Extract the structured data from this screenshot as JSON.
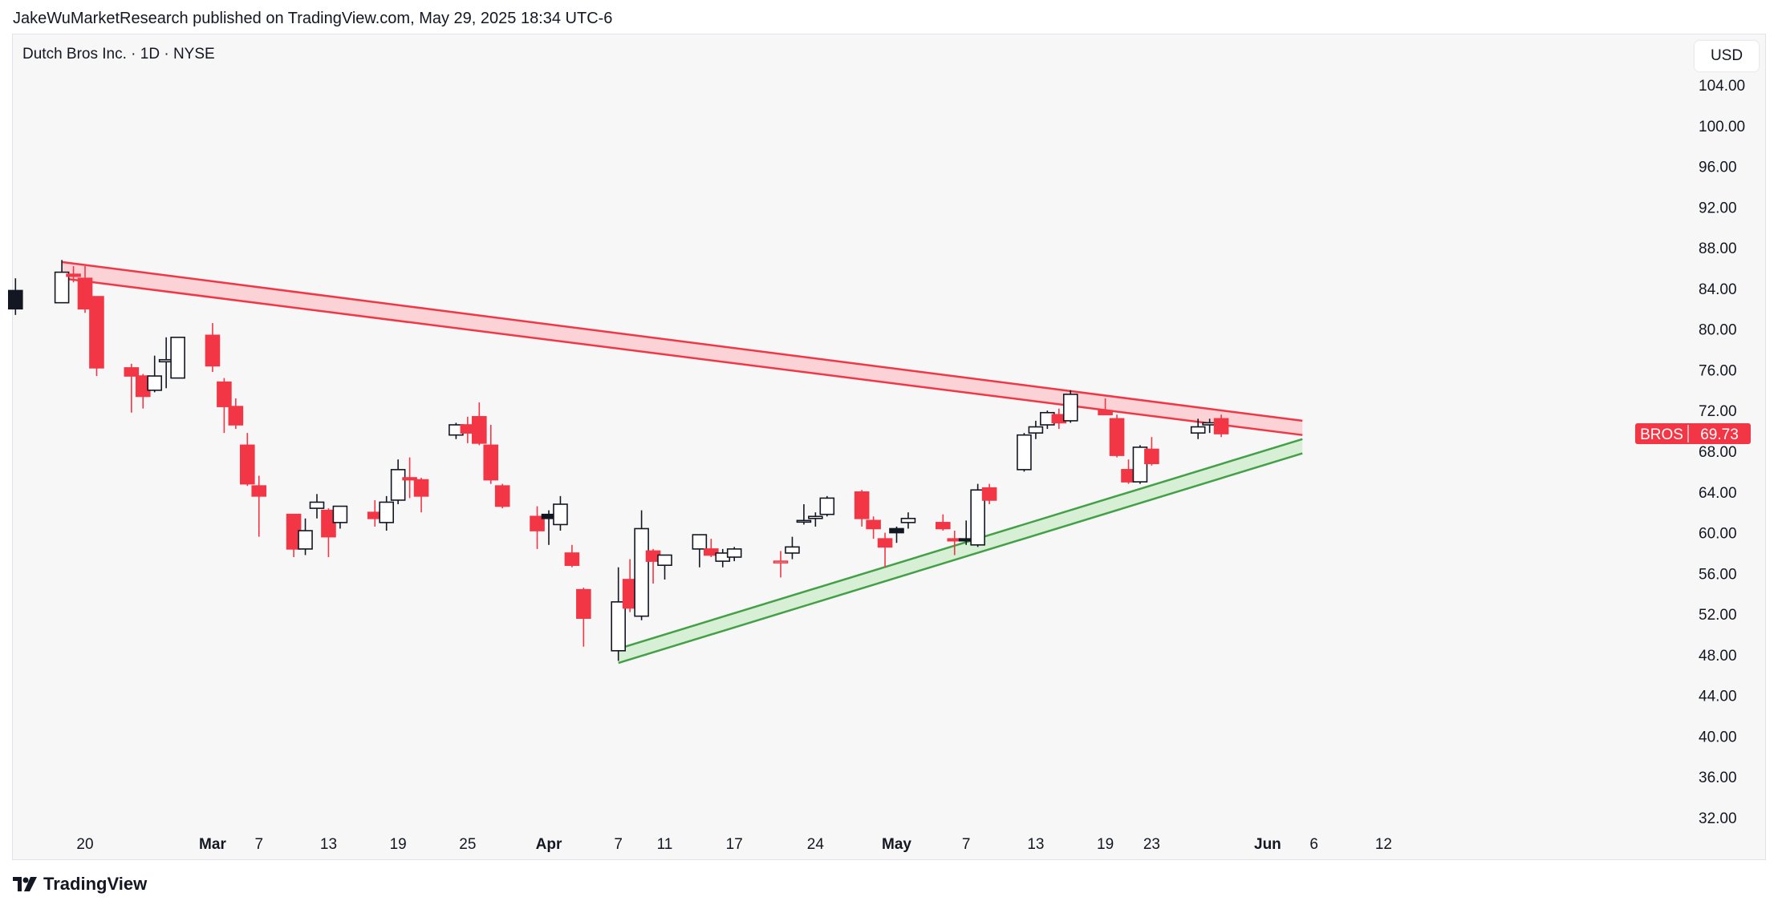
{
  "publisher": "JakeWuMarketResearch published on TradingView.com, May 29, 2025 18:34 UTC-6",
  "symbol_title": "Dutch Bros Inc. · 1D · NYSE",
  "currency": "USD",
  "brand": "TradingView",
  "colors": {
    "up": "#131722",
    "down": "#f23645",
    "resistance": "#f23645",
    "support": "#43a047",
    "resistance_fill": "#fbd3d6",
    "support_fill": "#d7efd4"
  },
  "chart_data": {
    "type": "candlestick",
    "symbol": "BROS",
    "last_price": "69.73",
    "ylim": [
      32,
      104
    ],
    "yticks": [
      "104.00",
      "100.00",
      "96.00",
      "92.00",
      "88.00",
      "84.00",
      "80.00",
      "76.00",
      "72.00",
      "68.00",
      "64.00",
      "60.00",
      "56.00",
      "52.00",
      "48.00",
      "44.00",
      "40.00",
      "36.00",
      "32.00"
    ],
    "xticks": [
      {
        "label": "20",
        "date": "2025-02-20",
        "bold": false
      },
      {
        "label": "Mar",
        "date": "2025-03-03",
        "bold": true
      },
      {
        "label": "7",
        "date": "2025-03-07",
        "bold": false
      },
      {
        "label": "13",
        "date": "2025-03-13",
        "bold": false
      },
      {
        "label": "19",
        "date": "2025-03-19",
        "bold": false
      },
      {
        "label": "25",
        "date": "2025-03-25",
        "bold": false
      },
      {
        "label": "Apr",
        "date": "2025-04-01",
        "bold": true
      },
      {
        "label": "7",
        "date": "2025-04-07",
        "bold": false
      },
      {
        "label": "11",
        "date": "2025-04-11",
        "bold": false
      },
      {
        "label": "17",
        "date": "2025-04-17",
        "bold": false
      },
      {
        "label": "24",
        "date": "2025-04-24",
        "bold": false
      },
      {
        "label": "May",
        "date": "2025-05-01",
        "bold": true
      },
      {
        "label": "7",
        "date": "2025-05-07",
        "bold": false
      },
      {
        "label": "13",
        "date": "2025-05-13",
        "bold": false
      },
      {
        "label": "19",
        "date": "2025-05-19",
        "bold": false
      },
      {
        "label": "23",
        "date": "2025-05-23",
        "bold": false
      },
      {
        "label": "Jun",
        "date": "2025-06-02",
        "bold": true
      },
      {
        "label": "6",
        "date": "2025-06-06",
        "bold": false
      },
      {
        "label": "12",
        "date": "2025-06-12",
        "bold": false
      }
    ],
    "candles": [
      {
        "date": "2025-02-14",
        "o": 83.8,
        "h": 85.0,
        "l": 81.4,
        "c": 82.0
      },
      {
        "date": "2025-02-18",
        "o": 82.6,
        "h": 86.8,
        "l": 82.6,
        "c": 85.6
      },
      {
        "date": "2025-02-19",
        "o": 85.4,
        "h": 86.2,
        "l": 84.6,
        "c": 85.2
      },
      {
        "date": "2025-02-20",
        "o": 85.0,
        "h": 86.2,
        "l": 81.6,
        "c": 82.0
      },
      {
        "date": "2025-02-21",
        "o": 83.2,
        "h": 83.2,
        "l": 75.4,
        "c": 76.2
      },
      {
        "date": "2025-02-24",
        "o": 76.2,
        "h": 76.6,
        "l": 71.8,
        "c": 75.4
      },
      {
        "date": "2025-02-25",
        "o": 75.4,
        "h": 75.6,
        "l": 72.2,
        "c": 73.4
      },
      {
        "date": "2025-02-26",
        "o": 74.0,
        "h": 77.4,
        "l": 73.8,
        "c": 75.4
      },
      {
        "date": "2025-02-27",
        "o": 76.8,
        "h": 79.2,
        "l": 74.2,
        "c": 77.0
      },
      {
        "date": "2025-02-28",
        "o": 75.2,
        "h": 79.2,
        "l": 75.2,
        "c": 79.2
      },
      {
        "date": "2025-03-03",
        "o": 79.4,
        "h": 80.6,
        "l": 75.8,
        "c": 76.4
      },
      {
        "date": "2025-03-04",
        "o": 74.8,
        "h": 75.2,
        "l": 69.8,
        "c": 72.4
      },
      {
        "date": "2025-03-05",
        "o": 72.4,
        "h": 73.2,
        "l": 70.2,
        "c": 70.6
      },
      {
        "date": "2025-03-06",
        "o": 68.6,
        "h": 69.8,
        "l": 64.6,
        "c": 64.8
      },
      {
        "date": "2025-03-07",
        "o": 64.6,
        "h": 65.6,
        "l": 59.6,
        "c": 63.6
      },
      {
        "date": "2025-03-10",
        "o": 61.8,
        "h": 61.8,
        "l": 57.6,
        "c": 58.4
      },
      {
        "date": "2025-03-11",
        "o": 58.4,
        "h": 61.4,
        "l": 57.8,
        "c": 60.2
      },
      {
        "date": "2025-03-12",
        "o": 62.4,
        "h": 63.8,
        "l": 61.4,
        "c": 63.0
      },
      {
        "date": "2025-03-13",
        "o": 62.2,
        "h": 62.4,
        "l": 57.6,
        "c": 59.6
      },
      {
        "date": "2025-03-14",
        "o": 61.0,
        "h": 62.6,
        "l": 60.4,
        "c": 62.6
      },
      {
        "date": "2025-03-17",
        "o": 62.0,
        "h": 63.2,
        "l": 60.6,
        "c": 61.4
      },
      {
        "date": "2025-03-18",
        "o": 61.0,
        "h": 63.6,
        "l": 60.2,
        "c": 63.0
      },
      {
        "date": "2025-03-19",
        "o": 63.2,
        "h": 67.2,
        "l": 62.8,
        "c": 66.2
      },
      {
        "date": "2025-03-20",
        "o": 65.4,
        "h": 67.4,
        "l": 63.4,
        "c": 65.2
      },
      {
        "date": "2025-03-21",
        "o": 65.2,
        "h": 65.4,
        "l": 62.0,
        "c": 63.6
      },
      {
        "date": "2025-03-24",
        "o": 69.6,
        "h": 70.8,
        "l": 69.2,
        "c": 70.6
      },
      {
        "date": "2025-03-25",
        "o": 70.6,
        "h": 71.4,
        "l": 68.8,
        "c": 69.8
      },
      {
        "date": "2025-03-26",
        "o": 71.4,
        "h": 72.8,
        "l": 68.6,
        "c": 68.8
      },
      {
        "date": "2025-03-27",
        "o": 68.6,
        "h": 70.6,
        "l": 64.8,
        "c": 65.2
      },
      {
        "date": "2025-03-28",
        "o": 64.6,
        "h": 64.8,
        "l": 62.4,
        "c": 62.6
      },
      {
        "date": "2025-03-31",
        "o": 61.6,
        "h": 62.6,
        "l": 58.4,
        "c": 60.2
      },
      {
        "date": "2025-04-01",
        "o": 61.8,
        "h": 62.2,
        "l": 58.8,
        "c": 61.4
      },
      {
        "date": "2025-04-02",
        "o": 60.8,
        "h": 63.6,
        "l": 60.2,
        "c": 62.8
      },
      {
        "date": "2025-04-03",
        "o": 58.0,
        "h": 58.8,
        "l": 56.6,
        "c": 56.8
      },
      {
        "date": "2025-04-04",
        "o": 54.4,
        "h": 54.6,
        "l": 48.8,
        "c": 51.6
      },
      {
        "date": "2025-04-07",
        "o": 48.4,
        "h": 56.6,
        "l": 47.4,
        "c": 53.2
      },
      {
        "date": "2025-04-08",
        "o": 55.4,
        "h": 57.4,
        "l": 52.2,
        "c": 52.6
      },
      {
        "date": "2025-04-09",
        "o": 51.8,
        "h": 62.2,
        "l": 51.4,
        "c": 60.4
      },
      {
        "date": "2025-04-10",
        "o": 58.2,
        "h": 58.4,
        "l": 55.0,
        "c": 57.2
      },
      {
        "date": "2025-04-11",
        "o": 56.8,
        "h": 57.8,
        "l": 55.4,
        "c": 57.8
      },
      {
        "date": "2025-04-14",
        "o": 58.4,
        "h": 59.8,
        "l": 56.6,
        "c": 59.8
      },
      {
        "date": "2025-04-15",
        "o": 58.4,
        "h": 59.4,
        "l": 57.6,
        "c": 57.8
      },
      {
        "date": "2025-04-16",
        "o": 57.2,
        "h": 58.4,
        "l": 56.6,
        "c": 58.0
      },
      {
        "date": "2025-04-17",
        "o": 57.6,
        "h": 58.6,
        "l": 57.2,
        "c": 58.4
      },
      {
        "date": "2025-04-21",
        "o": 57.2,
        "h": 58.2,
        "l": 55.6,
        "c": 57.2
      },
      {
        "date": "2025-04-22",
        "o": 58.0,
        "h": 59.6,
        "l": 57.4,
        "c": 58.6
      },
      {
        "date": "2025-04-23",
        "o": 61.2,
        "h": 62.8,
        "l": 60.8,
        "c": 61.2
      },
      {
        "date": "2025-04-24",
        "o": 61.4,
        "h": 62.0,
        "l": 60.6,
        "c": 61.6
      },
      {
        "date": "2025-04-25",
        "o": 61.8,
        "h": 63.6,
        "l": 61.6,
        "c": 63.4
      },
      {
        "date": "2025-04-28",
        "o": 64.0,
        "h": 64.2,
        "l": 60.6,
        "c": 61.4
      },
      {
        "date": "2025-04-29",
        "o": 61.2,
        "h": 61.6,
        "l": 59.4,
        "c": 60.4
      },
      {
        "date": "2025-04-30",
        "o": 59.4,
        "h": 60.0,
        "l": 56.6,
        "c": 58.6
      },
      {
        "date": "2025-05-01",
        "o": 60.4,
        "h": 60.6,
        "l": 59.0,
        "c": 60.0
      },
      {
        "date": "2025-05-02",
        "o": 61.0,
        "h": 62.0,
        "l": 60.4,
        "c": 61.4
      },
      {
        "date": "2025-05-05",
        "o": 61.0,
        "h": 61.8,
        "l": 60.2,
        "c": 60.4
      },
      {
        "date": "2025-05-06",
        "o": 59.4,
        "h": 60.2,
        "l": 57.8,
        "c": 59.2
      },
      {
        "date": "2025-05-07",
        "o": 59.4,
        "h": 61.2,
        "l": 58.8,
        "c": 59.2
      },
      {
        "date": "2025-05-08",
        "o": 58.8,
        "h": 64.8,
        "l": 58.6,
        "c": 64.2
      },
      {
        "date": "2025-05-09",
        "o": 64.4,
        "h": 64.8,
        "l": 62.8,
        "c": 63.2
      },
      {
        "date": "2025-05-12",
        "o": 66.2,
        "h": 69.8,
        "l": 66.0,
        "c": 69.6
      },
      {
        "date": "2025-05-13",
        "o": 69.8,
        "h": 71.0,
        "l": 69.2,
        "c": 70.4
      },
      {
        "date": "2025-05-14",
        "o": 70.6,
        "h": 72.0,
        "l": 70.2,
        "c": 71.8
      },
      {
        "date": "2025-05-15",
        "o": 71.6,
        "h": 72.2,
        "l": 70.2,
        "c": 70.8
      },
      {
        "date": "2025-05-16",
        "o": 71.0,
        "h": 74.0,
        "l": 70.8,
        "c": 73.6
      },
      {
        "date": "2025-05-19",
        "o": 72.0,
        "h": 73.2,
        "l": 71.6,
        "c": 71.6
      },
      {
        "date": "2025-05-20",
        "o": 71.2,
        "h": 71.6,
        "l": 67.4,
        "c": 67.6
      },
      {
        "date": "2025-05-21",
        "o": 66.2,
        "h": 67.2,
        "l": 64.8,
        "c": 65.0
      },
      {
        "date": "2025-05-22",
        "o": 65.0,
        "h": 68.6,
        "l": 64.8,
        "c": 68.4
      },
      {
        "date": "2025-05-23",
        "o": 68.2,
        "h": 69.4,
        "l": 66.6,
        "c": 66.8
      },
      {
        "date": "2025-05-27",
        "o": 69.8,
        "h": 71.2,
        "l": 69.2,
        "c": 70.4
      },
      {
        "date": "2025-05-28",
        "o": 70.6,
        "h": 71.2,
        "l": 69.8,
        "c": 70.8
      },
      {
        "date": "2025-05-29",
        "o": 71.2,
        "h": 71.6,
        "l": 69.4,
        "c": 69.73
      }
    ],
    "trendlines": [
      {
        "name": "resistance",
        "color": "#f23645",
        "fill": "#fbd3d6",
        "upper": [
          {
            "date": "2025-02-18",
            "value": 86.6
          },
          {
            "date": "2025-06-05",
            "value": 71.0
          }
        ],
        "lower": [
          {
            "date": "2025-02-18",
            "value": 85.0
          },
          {
            "date": "2025-06-05",
            "value": 69.6
          }
        ]
      },
      {
        "name": "support",
        "color": "#43a047",
        "fill": "#d7efd4",
        "upper": [
          {
            "date": "2025-04-07",
            "value": 48.6
          },
          {
            "date": "2025-06-05",
            "value": 69.2
          }
        ],
        "lower": [
          {
            "date": "2025-04-07",
            "value": 47.2
          },
          {
            "date": "2025-06-05",
            "value": 67.8
          }
        ]
      }
    ]
  }
}
